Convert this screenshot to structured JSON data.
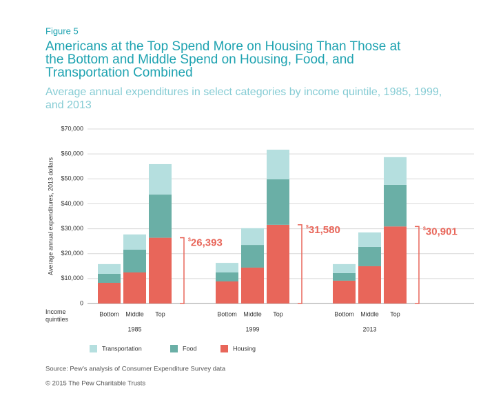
{
  "chart_data": {
    "type": "bar",
    "stacked": true,
    "figure_label": "Figure 5",
    "title_lines": [
      "Americans at the Top Spend More on Housing Than Those at",
      "the Bottom and Middle Spend on Housing, Food, and",
      "Transportation Combined"
    ],
    "subtitle_lines": [
      "Average annual expenditures in select categories by income quintile, 1985, 1999,",
      "and 2013"
    ],
    "y_label": "Average annual expenditures, 2013 dollars",
    "x_label": "Income quintiles",
    "groups": [
      "1985",
      "1999",
      "2013"
    ],
    "categories": [
      "Bottom",
      "Middle",
      "Top",
      "Bottom",
      "Middle",
      "Top",
      "Bottom",
      "Middle",
      "Top"
    ],
    "series": [
      {
        "name": "Housing",
        "color": "#e8665a",
        "values": [
          8300,
          12450,
          26393,
          8850,
          14400,
          31580,
          9150,
          14950,
          30901
        ],
        "value_labels": [
          null,
          null,
          "$26,393",
          null,
          null,
          "$31,580",
          null,
          null,
          "$30,901"
        ]
      },
      {
        "name": "Food",
        "color": "#6aafa6",
        "values": [
          3600,
          9150,
          17300,
          3600,
          9100,
          18220,
          3050,
          7750,
          16700
        ]
      },
      {
        "name": "Transportation",
        "color": "#b5dfdf",
        "values": [
          3900,
          6100,
          12200,
          3850,
          6700,
          11900,
          3600,
          5800,
          11100
        ]
      }
    ],
    "ylim": [
      0,
      70000
    ],
    "yticks": [
      0,
      {
        "value": 10000,
        "label": "$10,000"
      },
      {
        "value": 20000,
        "label": "$20,000"
      },
      {
        "value": 30000,
        "label": "$30,000"
      },
      {
        "value": 40000,
        "label": "$40,000"
      },
      {
        "value": 50000,
        "label": "$50,000"
      },
      {
        "value": 60000,
        "label": "$60,000"
      },
      {
        "value": 70000,
        "label": "$70,000"
      }
    ],
    "grid": true,
    "legend_order": [
      2,
      1,
      0
    ],
    "source": "Source: Pew’s analysis of Consumer Expenditure Survey data",
    "copyright": "© 2015 The Pew Charitable Trusts"
  }
}
